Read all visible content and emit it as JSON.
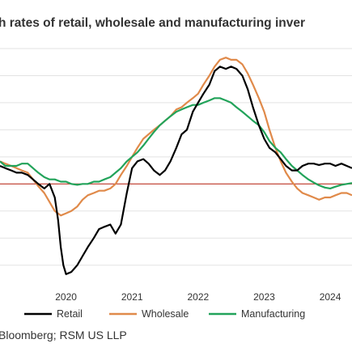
{
  "title": "h rates of retail, wholesale and manufacturing inver",
  "source": "Bloomberg; RSM US LLP",
  "chart_data": {
    "type": "line",
    "title": "h rates of retail, wholesale and manufacturing inver",
    "xlabel": "",
    "ylabel": "",
    "x_ticks": [
      "2020",
      "2021",
      "2022",
      "2023",
      "2024"
    ],
    "xlim": [
      2019.0,
      2024.33
    ],
    "ylim": [
      -22,
      30
    ],
    "grid": "horizontal",
    "legend_position": "bottom",
    "reference_line": {
      "y": 0,
      "color": "#c0392b"
    },
    "series": [
      {
        "name": "Retail",
        "color": "#000000",
        "points": [
          [
            2019.0,
            4
          ],
          [
            2019.08,
            3.5
          ],
          [
            2019.17,
            3
          ],
          [
            2019.25,
            2.5
          ],
          [
            2019.33,
            2.5
          ],
          [
            2019.42,
            2
          ],
          [
            2019.5,
            1
          ],
          [
            2019.58,
            0
          ],
          [
            2019.67,
            -1
          ],
          [
            2019.75,
            0
          ],
          [
            2019.83,
            -3
          ],
          [
            2019.88,
            -8
          ],
          [
            2019.92,
            -14
          ],
          [
            2019.96,
            -18
          ],
          [
            2020.0,
            -20
          ],
          [
            2020.08,
            -19.5
          ],
          [
            2020.17,
            -18
          ],
          [
            2020.25,
            -16
          ],
          [
            2020.33,
            -14
          ],
          [
            2020.42,
            -12
          ],
          [
            2020.5,
            -10
          ],
          [
            2020.58,
            -9.5
          ],
          [
            2020.67,
            -9
          ],
          [
            2020.75,
            -11
          ],
          [
            2020.83,
            -9
          ],
          [
            2020.92,
            -2
          ],
          [
            2021.0,
            3.5
          ],
          [
            2021.08,
            5
          ],
          [
            2021.17,
            5.5
          ],
          [
            2021.25,
            4.5
          ],
          [
            2021.33,
            3
          ],
          [
            2021.42,
            2
          ],
          [
            2021.5,
            3
          ],
          [
            2021.58,
            5
          ],
          [
            2021.67,
            8
          ],
          [
            2021.75,
            11
          ],
          [
            2021.83,
            12
          ],
          [
            2021.92,
            16
          ],
          [
            2022.0,
            18
          ],
          [
            2022.08,
            20
          ],
          [
            2022.17,
            22
          ],
          [
            2022.25,
            25
          ],
          [
            2022.33,
            26
          ],
          [
            2022.42,
            25.5
          ],
          [
            2022.5,
            26
          ],
          [
            2022.58,
            25.5
          ],
          [
            2022.67,
            24
          ],
          [
            2022.75,
            21
          ],
          [
            2022.83,
            17
          ],
          [
            2022.92,
            13
          ],
          [
            2023.0,
            10
          ],
          [
            2023.08,
            8
          ],
          [
            2023.17,
            7
          ],
          [
            2023.25,
            5.5
          ],
          [
            2023.33,
            4
          ],
          [
            2023.42,
            3
          ],
          [
            2023.5,
            3
          ],
          [
            2023.58,
            4
          ],
          [
            2023.67,
            4.5
          ],
          [
            2023.75,
            4.5
          ],
          [
            2023.83,
            4.2
          ],
          [
            2023.92,
            4.5
          ],
          [
            2024.0,
            4.5
          ],
          [
            2024.08,
            4
          ],
          [
            2024.17,
            4.5
          ],
          [
            2024.25,
            4
          ],
          [
            2024.33,
            3.5
          ]
        ]
      },
      {
        "name": "Wholesale",
        "color": "#e08a4a",
        "points": [
          [
            2019.0,
            5
          ],
          [
            2019.08,
            4.5
          ],
          [
            2019.17,
            4
          ],
          [
            2019.25,
            3.5
          ],
          [
            2019.33,
            3
          ],
          [
            2019.42,
            2.5
          ],
          [
            2019.5,
            1
          ],
          [
            2019.58,
            -0.5
          ],
          [
            2019.67,
            -2
          ],
          [
            2019.75,
            -4
          ],
          [
            2019.83,
            -6
          ],
          [
            2019.92,
            -7
          ],
          [
            2020.0,
            -6.5
          ],
          [
            2020.08,
            -6
          ],
          [
            2020.17,
            -5
          ],
          [
            2020.25,
            -3.5
          ],
          [
            2020.33,
            -2.5
          ],
          [
            2020.42,
            -2
          ],
          [
            2020.5,
            -1.5
          ],
          [
            2020.58,
            -1.5
          ],
          [
            2020.67,
            -1
          ],
          [
            2020.75,
            0
          ],
          [
            2020.83,
            2
          ],
          [
            2020.92,
            4
          ],
          [
            2021.0,
            6
          ],
          [
            2021.08,
            8
          ],
          [
            2021.17,
            10
          ],
          [
            2021.25,
            11
          ],
          [
            2021.33,
            12
          ],
          [
            2021.42,
            13
          ],
          [
            2021.5,
            14
          ],
          [
            2021.58,
            15
          ],
          [
            2021.67,
            16.5
          ],
          [
            2021.75,
            17
          ],
          [
            2021.83,
            18
          ],
          [
            2021.92,
            19
          ],
          [
            2022.0,
            20
          ],
          [
            2022.08,
            22
          ],
          [
            2022.17,
            24
          ],
          [
            2022.25,
            26
          ],
          [
            2022.33,
            27.5
          ],
          [
            2022.42,
            28
          ],
          [
            2022.5,
            27.5
          ],
          [
            2022.58,
            27.5
          ],
          [
            2022.67,
            26.5
          ],
          [
            2022.75,
            24.5
          ],
          [
            2022.83,
            22
          ],
          [
            2022.92,
            19
          ],
          [
            2023.0,
            16
          ],
          [
            2023.08,
            12
          ],
          [
            2023.17,
            8
          ],
          [
            2023.25,
            5
          ],
          [
            2023.33,
            2.5
          ],
          [
            2023.42,
            0.5
          ],
          [
            2023.5,
            -1
          ],
          [
            2023.58,
            -2
          ],
          [
            2023.67,
            -2.5
          ],
          [
            2023.75,
            -3
          ],
          [
            2023.83,
            -3.5
          ],
          [
            2023.92,
            -3
          ],
          [
            2024.0,
            -3
          ],
          [
            2024.08,
            -2.5
          ],
          [
            2024.17,
            -2
          ],
          [
            2024.25,
            -2
          ],
          [
            2024.33,
            -2.5
          ]
        ]
      },
      {
        "name": "Manufacturing",
        "color": "#22a35a",
        "points": [
          [
            2019.0,
            5
          ],
          [
            2019.08,
            4
          ],
          [
            2019.17,
            4
          ],
          [
            2019.25,
            4
          ],
          [
            2019.33,
            4.5
          ],
          [
            2019.42,
            4.5
          ],
          [
            2019.5,
            3.5
          ],
          [
            2019.58,
            2.5
          ],
          [
            2019.67,
            1.5
          ],
          [
            2019.75,
            1
          ],
          [
            2019.83,
            1
          ],
          [
            2019.92,
            0.5
          ],
          [
            2020.0,
            0.5
          ],
          [
            2020.08,
            0
          ],
          [
            2020.17,
            -0.2
          ],
          [
            2020.25,
            0
          ],
          [
            2020.33,
            0
          ],
          [
            2020.42,
            0.5
          ],
          [
            2020.5,
            0.5
          ],
          [
            2020.58,
            1
          ],
          [
            2020.67,
            1.5
          ],
          [
            2020.75,
            2.5
          ],
          [
            2020.83,
            3.5
          ],
          [
            2020.92,
            5
          ],
          [
            2021.0,
            6
          ],
          [
            2021.08,
            7
          ],
          [
            2021.17,
            8.5
          ],
          [
            2021.25,
            10
          ],
          [
            2021.33,
            11.5
          ],
          [
            2021.42,
            13
          ],
          [
            2021.5,
            14
          ],
          [
            2021.58,
            15
          ],
          [
            2021.67,
            16
          ],
          [
            2021.75,
            16.5
          ],
          [
            2021.83,
            17
          ],
          [
            2021.92,
            17.5
          ],
          [
            2022.0,
            17.5
          ],
          [
            2022.08,
            18
          ],
          [
            2022.17,
            18.5
          ],
          [
            2022.25,
            19
          ],
          [
            2022.33,
            19
          ],
          [
            2022.42,
            18.5
          ],
          [
            2022.5,
            18
          ],
          [
            2022.58,
            17
          ],
          [
            2022.67,
            16
          ],
          [
            2022.75,
            15
          ],
          [
            2022.83,
            14
          ],
          [
            2022.92,
            13
          ],
          [
            2023.0,
            11.5
          ],
          [
            2023.08,
            9.5
          ],
          [
            2023.17,
            8
          ],
          [
            2023.25,
            7
          ],
          [
            2023.33,
            5.5
          ],
          [
            2023.42,
            4
          ],
          [
            2023.5,
            3
          ],
          [
            2023.58,
            2
          ],
          [
            2023.67,
            1
          ],
          [
            2023.75,
            0.3
          ],
          [
            2023.83,
            -0.3
          ],
          [
            2023.92,
            -0.8
          ],
          [
            2024.0,
            -1
          ],
          [
            2024.08,
            -0.6
          ],
          [
            2024.17,
            -0.2
          ],
          [
            2024.25,
            0
          ],
          [
            2024.33,
            0.2
          ]
        ]
      }
    ]
  }
}
